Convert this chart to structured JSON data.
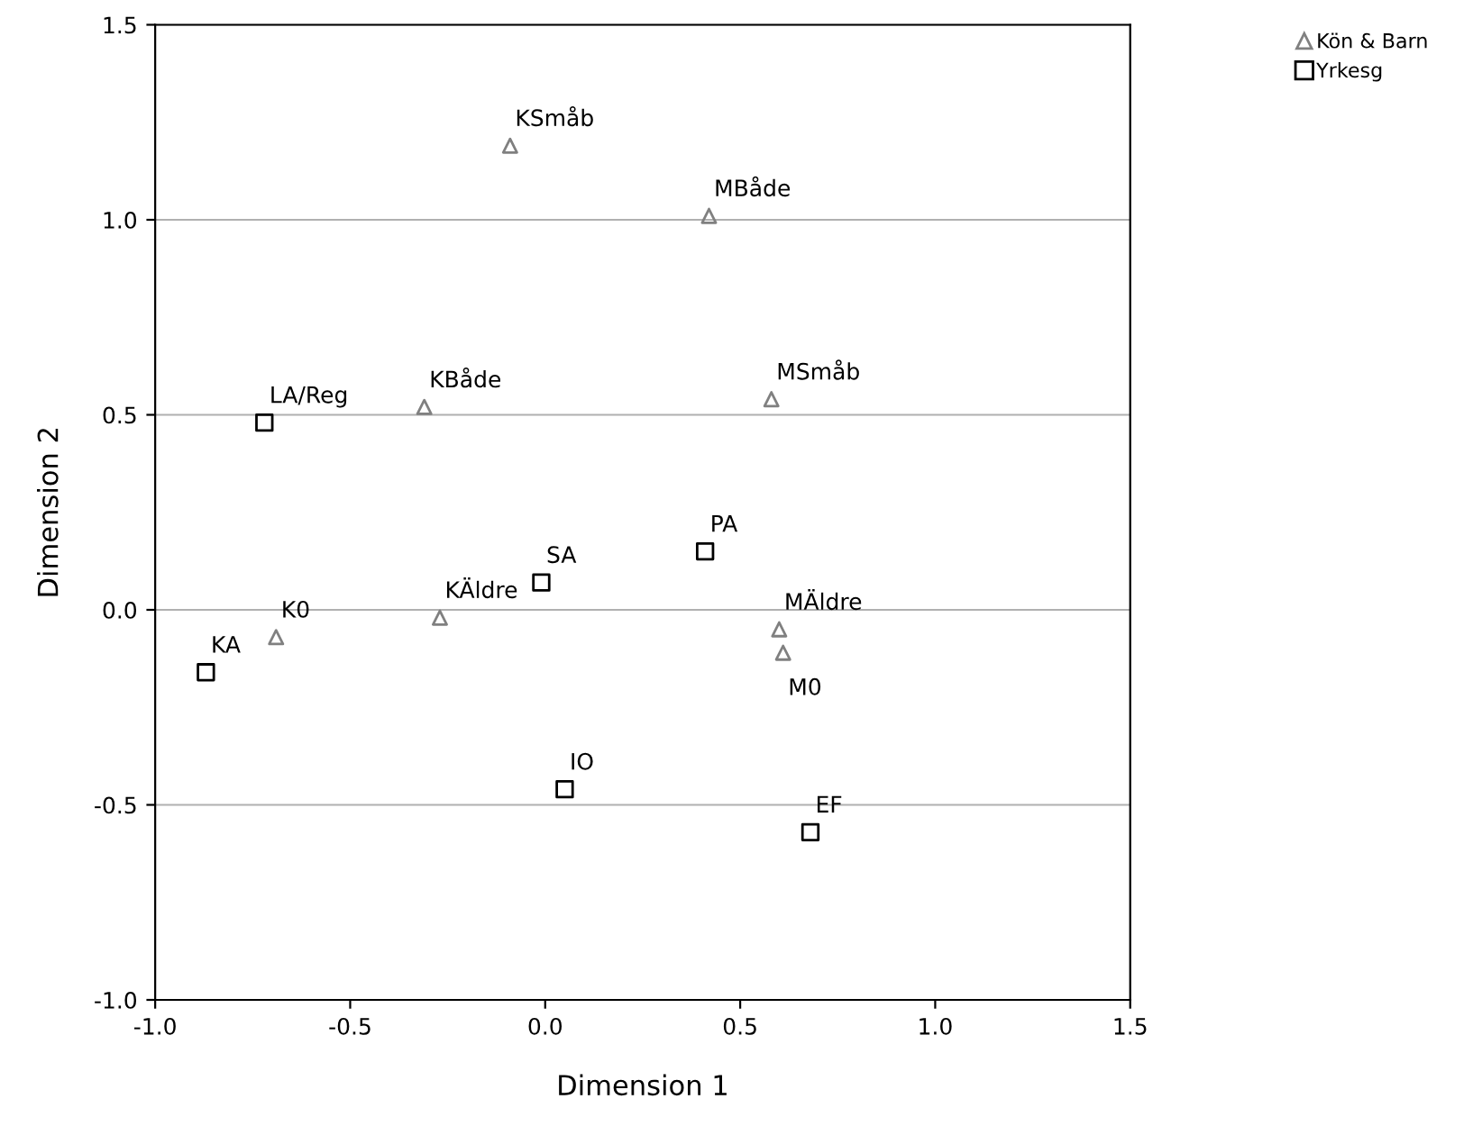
{
  "chart_data": {
    "type": "scatter",
    "xlabel": "Dimension 1",
    "ylabel": "Dimension 2",
    "xlim": [
      -1.0,
      1.5
    ],
    "ylim": [
      -1.0,
      1.5
    ],
    "xticks": [
      {
        "value": -1.0,
        "label": "-1.0"
      },
      {
        "value": -0.5,
        "label": "-0.5"
      },
      {
        "value": 0.0,
        "label": "0.0"
      },
      {
        "value": 0.5,
        "label": "0.5"
      },
      {
        "value": 1.0,
        "label": "1.0"
      },
      {
        "value": 1.5,
        "label": "1.5"
      }
    ],
    "yticks": [
      {
        "value": -1.0,
        "label": "-1.0"
      },
      {
        "value": -0.5,
        "label": "-0.5"
      },
      {
        "value": 0.0,
        "label": "0.0"
      },
      {
        "value": 0.5,
        "label": "0.5"
      },
      {
        "value": 1.0,
        "label": "1.0"
      },
      {
        "value": 1.5,
        "label": "1.5"
      }
    ],
    "grid": "y",
    "legend": "top right",
    "series": [
      {
        "name": "Kön & Barn",
        "color": "#808080",
        "marker": "triangle",
        "x": [
          -0.09,
          0.42,
          -0.31,
          0.58,
          -0.27,
          0.6,
          0.61,
          -0.69
        ],
        "values": [
          1.19,
          1.01,
          0.52,
          0.54,
          -0.02,
          -0.05,
          -0.11,
          -0.07
        ]
      },
      {
        "name": "Yrkesg",
        "color": "#000000",
        "marker": "square",
        "x": [
          -0.72,
          -0.01,
          0.41,
          -0.87,
          0.05,
          0.68
        ],
        "values": [
          0.48,
          0.07,
          0.15,
          -0.16,
          -0.46,
          -0.57
        ]
      }
    ],
    "annotations": [
      {
        "text": "KSmåb",
        "x": -0.09,
        "y": 1.19
      },
      {
        "text": "MBåde",
        "x": 0.42,
        "y": 1.01
      },
      {
        "text": "KBåde",
        "x": -0.31,
        "y": 0.52
      },
      {
        "text": "MSmåb",
        "x": 0.58,
        "y": 0.54
      },
      {
        "text": "KÄldre",
        "x": -0.27,
        "y": -0.02
      },
      {
        "text": "MÄldre",
        "x": 0.6,
        "y": -0.05
      },
      {
        "text": "M0",
        "x": 0.61,
        "y": -0.11
      },
      {
        "text": "K0",
        "x": -0.69,
        "y": -0.07
      },
      {
        "text": "LA/Reg",
        "x": -0.72,
        "y": 0.48
      },
      {
        "text": "SA",
        "x": -0.01,
        "y": 0.07
      },
      {
        "text": "PA",
        "x": 0.41,
        "y": 0.15
      },
      {
        "text": "KA",
        "x": -0.87,
        "y": -0.16
      },
      {
        "text": "IO",
        "x": 0.05,
        "y": -0.46
      },
      {
        "text": "EF",
        "x": 0.68,
        "y": -0.57
      }
    ]
  }
}
